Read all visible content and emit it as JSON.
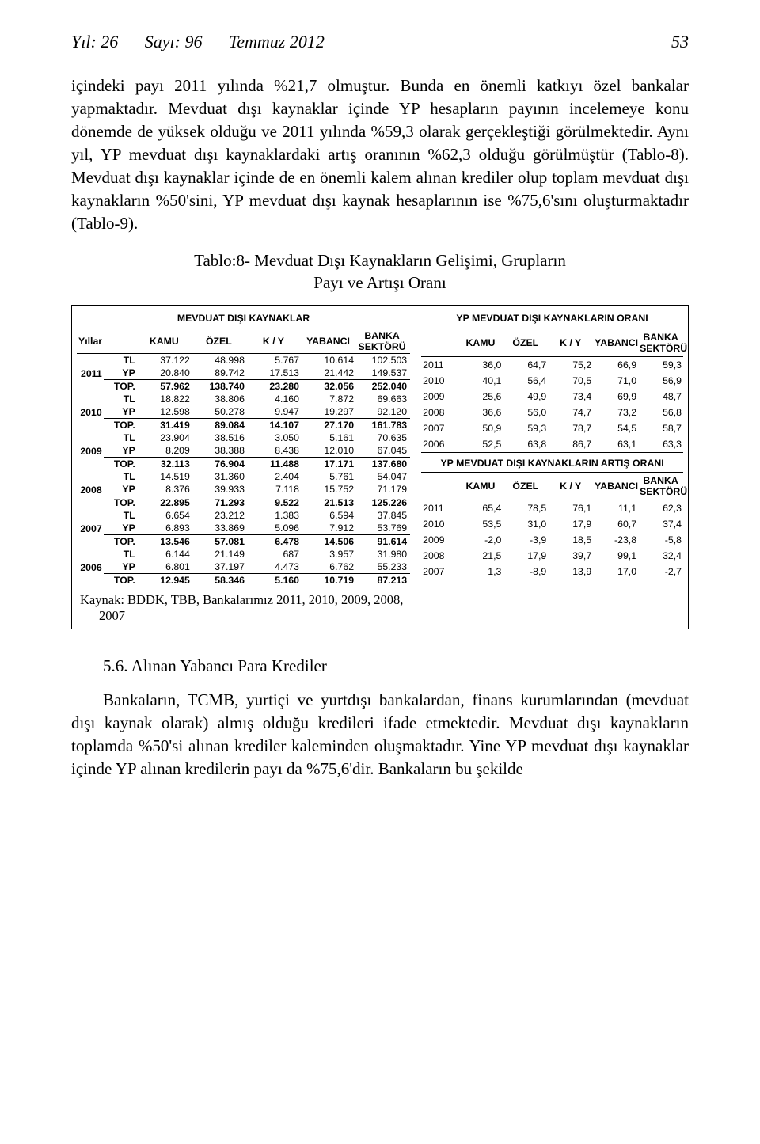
{
  "header": {
    "year_label": "Yıl: 26",
    "issue_label": "Sayı: 96",
    "date_label": "Temmuz 2012",
    "page_no": "53"
  },
  "paragraphs": {
    "p1": "içindeki payı 2011 yılında %21,7 olmuştur. Bunda en önemli katkıyı özel bankalar yapmaktadır. Mevduat dışı kaynaklar içinde YP hesapların payının incelemeye konu dönemde de yüksek olduğu ve 2011 yılında %59,3 olarak gerçekleştiği görülmektedir. Aynı yıl, YP mevduat dışı kaynaklardaki artış oranının %62,3 olduğu görülmüştür (Tablo-8). Mevduat dışı kaynaklar içinde de en önemli kalem alınan krediler olup toplam mevduat dışı kaynakların %50'sini, YP mevduat dışı kaynak hesaplarının ise %75,6'sını oluşturmaktadır (Tablo-9)."
  },
  "table_title": {
    "line1": "Tablo:8- Mevduat Dışı Kaynakların Gelişimi, Grupların",
    "line2": "Payı ve Artışı Oranı"
  },
  "left_table": {
    "title": "MEVDUAT DIŞI KAYNAKLAR",
    "columns": {
      "yillar": "Yıllar",
      "kamu": "KAMU",
      "ozel": "ÖZEL",
      "ky": "K / Y",
      "yabanci": "YABANCI",
      "banka1": "BANKA",
      "banka2": "SEKTÖRÜ"
    },
    "years": [
      "2011",
      "2010",
      "2009",
      "2008",
      "2007",
      "2006"
    ],
    "currencies": [
      "TL",
      "YP",
      "TOP."
    ],
    "values": [
      [
        [
          "37.122",
          "48.998",
          "5.767",
          "10.614",
          "102.503"
        ],
        [
          "20.840",
          "89.742",
          "17.513",
          "21.442",
          "149.537"
        ],
        [
          "57.962",
          "138.740",
          "23.280",
          "32.056",
          "252.040"
        ]
      ],
      [
        [
          "18.822",
          "38.806",
          "4.160",
          "7.872",
          "69.663"
        ],
        [
          "12.598",
          "50.278",
          "9.947",
          "19.297",
          "92.120"
        ],
        [
          "31.419",
          "89.084",
          "14.107",
          "27.170",
          "161.783"
        ]
      ],
      [
        [
          "23.904",
          "38.516",
          "3.050",
          "5.161",
          "70.635"
        ],
        [
          "8.209",
          "38.388",
          "8.438",
          "12.010",
          "67.045"
        ],
        [
          "32.113",
          "76.904",
          "11.488",
          "17.171",
          "137.680"
        ]
      ],
      [
        [
          "14.519",
          "31.360",
          "2.404",
          "5.761",
          "54.047"
        ],
        [
          "8.376",
          "39.933",
          "7.118",
          "15.752",
          "71.179"
        ],
        [
          "22.895",
          "71.293",
          "9.522",
          "21.513",
          "125.226"
        ]
      ],
      [
        [
          "6.654",
          "23.212",
          "1.383",
          "6.594",
          "37.845"
        ],
        [
          "6.893",
          "33.869",
          "5.096",
          "7.912",
          "53.769"
        ],
        [
          "13.546",
          "57.081",
          "6.478",
          "14.506",
          "91.614"
        ]
      ],
      [
        [
          "6.144",
          "21.149",
          "687",
          "3.957",
          "31.980"
        ],
        [
          "6.801",
          "37.197",
          "4.473",
          "6.762",
          "55.233"
        ],
        [
          "12.945",
          "58.346",
          "5.160",
          "10.719",
          "87.213"
        ]
      ]
    ],
    "source": "Kaynak: BDDK, TBB, Bankalarımız 2011, 2010, 2009, 2008, 2007"
  },
  "right_top": {
    "title": "YP MEVDUAT DIŞI KAYNAKLARIN ORANI",
    "columns": {
      "kamu": "KAMU",
      "ozel": "ÖZEL",
      "ky": "K / Y",
      "yabanci": "YABANCI",
      "banka1": "BANKA",
      "banka2": "SEKTÖRÜ"
    },
    "rows": [
      [
        "2011",
        "36,0",
        "64,7",
        "75,2",
        "66,9",
        "59,3"
      ],
      [
        "2010",
        "40,1",
        "56,4",
        "70,5",
        "71,0",
        "56,9"
      ],
      [
        "2009",
        "25,6",
        "49,9",
        "73,4",
        "69,9",
        "48,7"
      ],
      [
        "2008",
        "36,6",
        "56,0",
        "74,7",
        "73,2",
        "56,8"
      ],
      [
        "2007",
        "50,9",
        "59,3",
        "78,7",
        "54,5",
        "58,7"
      ],
      [
        "2006",
        "52,5",
        "63,8",
        "86,7",
        "63,1",
        "63,3"
      ]
    ]
  },
  "right_bottom": {
    "title": "YP MEVDUAT DIŞI KAYNAKLARIN ARTIŞ ORANI",
    "columns": {
      "kamu": "KAMU",
      "ozel": "ÖZEL",
      "ky": "K / Y",
      "yabanci": "YABANCI",
      "banka1": "BANKA",
      "banka2": "SEKTÖRÜ"
    },
    "rows": [
      [
        "2011",
        "65,4",
        "78,5",
        "76,1",
        "11,1",
        "62,3"
      ],
      [
        "2010",
        "53,5",
        "31,0",
        "17,9",
        "60,7",
        "37,4"
      ],
      [
        "2009",
        "-2,0",
        "-3,9",
        "18,5",
        "-23,8",
        "-5,8"
      ],
      [
        "2008",
        "21,5",
        "17,9",
        "39,7",
        "99,1",
        "32,4"
      ],
      [
        "2007",
        "1,3",
        "-8,9",
        "13,9",
        "17,0",
        "-2,7"
      ]
    ]
  },
  "section_heading": "5.6. Alınan Yabancı Para Krediler",
  "paragraphs2": {
    "p2": "Bankaların, TCMB, yurtiçi ve yurtdışı bankalardan, finans kurumlarından (mevduat dışı kaynak olarak) almış olduğu kredileri ifade etmektedir. Mevduat dışı kaynakların toplamda %50'si alınan krediler kaleminden oluşmaktadır. Yine YP mevduat dışı kaynaklar içinde YP alınan kredilerin payı da %75,6'dir. Bankaların bu şekilde"
  }
}
